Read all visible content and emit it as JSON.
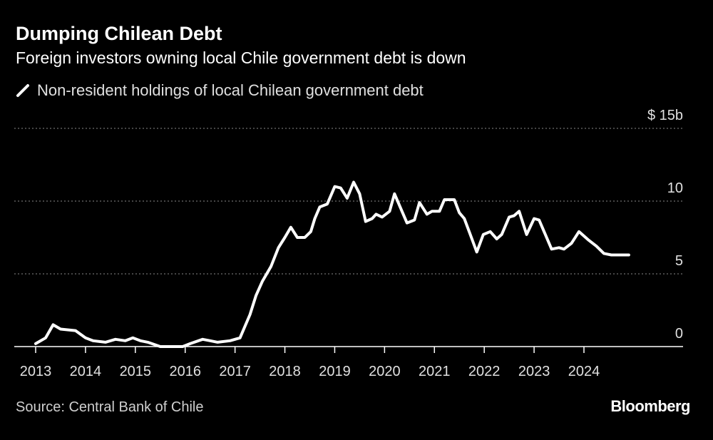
{
  "header": {
    "title": "Dumping Chilean Debt",
    "subtitle": "Foreign investors owning local Chile government debt is down"
  },
  "legend": {
    "label": "Non-resident holdings of local Chilean government debt"
  },
  "footer": {
    "source": "Source: Central Bank of Chile",
    "brand": "Bloomberg"
  },
  "colors": {
    "background": "#000000",
    "line": "#ffffff",
    "grid": "#8a8a8a"
  },
  "chart_data": {
    "type": "line",
    "title": "Dumping Chilean Debt",
    "xlabel": "",
    "ylabel": "",
    "xlim": [
      2013,
      2025.4
    ],
    "ylim": [
      0,
      15
    ],
    "y_unit_prefix": "$",
    "y_unit_suffix": "b",
    "yticks": [
      0,
      5,
      10,
      15
    ],
    "ytick_labels": [
      "0",
      "5",
      "10",
      "$ 15b"
    ],
    "xticks": [
      2013,
      2014,
      2015,
      2016,
      2017,
      2018,
      2019,
      2020,
      2021,
      2022,
      2023,
      2024
    ],
    "xtick_labels": [
      "2013",
      "2014",
      "2015",
      "2016",
      "2017",
      "2018",
      "2019",
      "2020",
      "2021",
      "2022",
      "2023",
      "2024"
    ],
    "grid": true,
    "legend_position": "top-left",
    "series": [
      {
        "name": "Non-resident holdings of local Chilean government debt",
        "x": [
          2013.0,
          2013.2,
          2013.35,
          2013.5,
          2013.8,
          2014.0,
          2014.15,
          2014.4,
          2014.6,
          2014.8,
          2014.95,
          2015.1,
          2015.25,
          2015.5,
          2015.75,
          2015.95,
          2016.1,
          2016.35,
          2016.5,
          2016.65,
          2016.9,
          2017.1,
          2017.3,
          2017.42,
          2017.55,
          2017.72,
          2017.87,
          2018.0,
          2018.12,
          2018.25,
          2018.4,
          2018.52,
          2018.6,
          2018.7,
          2018.85,
          2019.0,
          2019.12,
          2019.25,
          2019.38,
          2019.5,
          2019.62,
          2019.75,
          2019.83,
          2019.95,
          2020.1,
          2020.2,
          2020.35,
          2020.45,
          2020.6,
          2020.7,
          2020.85,
          2020.95,
          2021.1,
          2021.2,
          2021.4,
          2021.5,
          2021.6,
          2021.72,
          2021.85,
          2021.98,
          2022.12,
          2022.25,
          2022.35,
          2022.5,
          2022.6,
          2022.7,
          2022.85,
          2023.0,
          2023.1,
          2023.2,
          2023.35,
          2023.5,
          2023.6,
          2023.75,
          2023.9,
          2024.1,
          2024.25,
          2024.4,
          2024.55,
          2024.7,
          2024.8,
          2024.9
        ],
        "values": [
          0.2,
          0.6,
          1.5,
          1.2,
          1.1,
          0.6,
          0.4,
          0.3,
          0.5,
          0.4,
          0.6,
          0.4,
          0.3,
          0.0,
          0.0,
          0.0,
          0.2,
          0.5,
          0.4,
          0.3,
          0.4,
          0.6,
          2.2,
          3.5,
          4.5,
          5.5,
          6.8,
          7.5,
          8.2,
          7.5,
          7.5,
          7.9,
          8.8,
          9.6,
          9.8,
          11.0,
          10.9,
          10.2,
          11.3,
          10.5,
          8.6,
          8.8,
          9.1,
          8.9,
          9.3,
          10.5,
          9.3,
          8.5,
          8.7,
          9.9,
          9.1,
          9.3,
          9.3,
          10.1,
          10.1,
          9.2,
          8.8,
          7.7,
          6.5,
          7.7,
          7.9,
          7.4,
          7.7,
          8.9,
          9.0,
          9.3,
          7.7,
          8.8,
          8.7,
          7.9,
          6.7,
          6.8,
          6.7,
          7.1,
          7.9,
          7.3,
          6.9,
          6.4,
          6.3,
          6.3,
          6.3,
          6.3
        ]
      }
    ]
  }
}
